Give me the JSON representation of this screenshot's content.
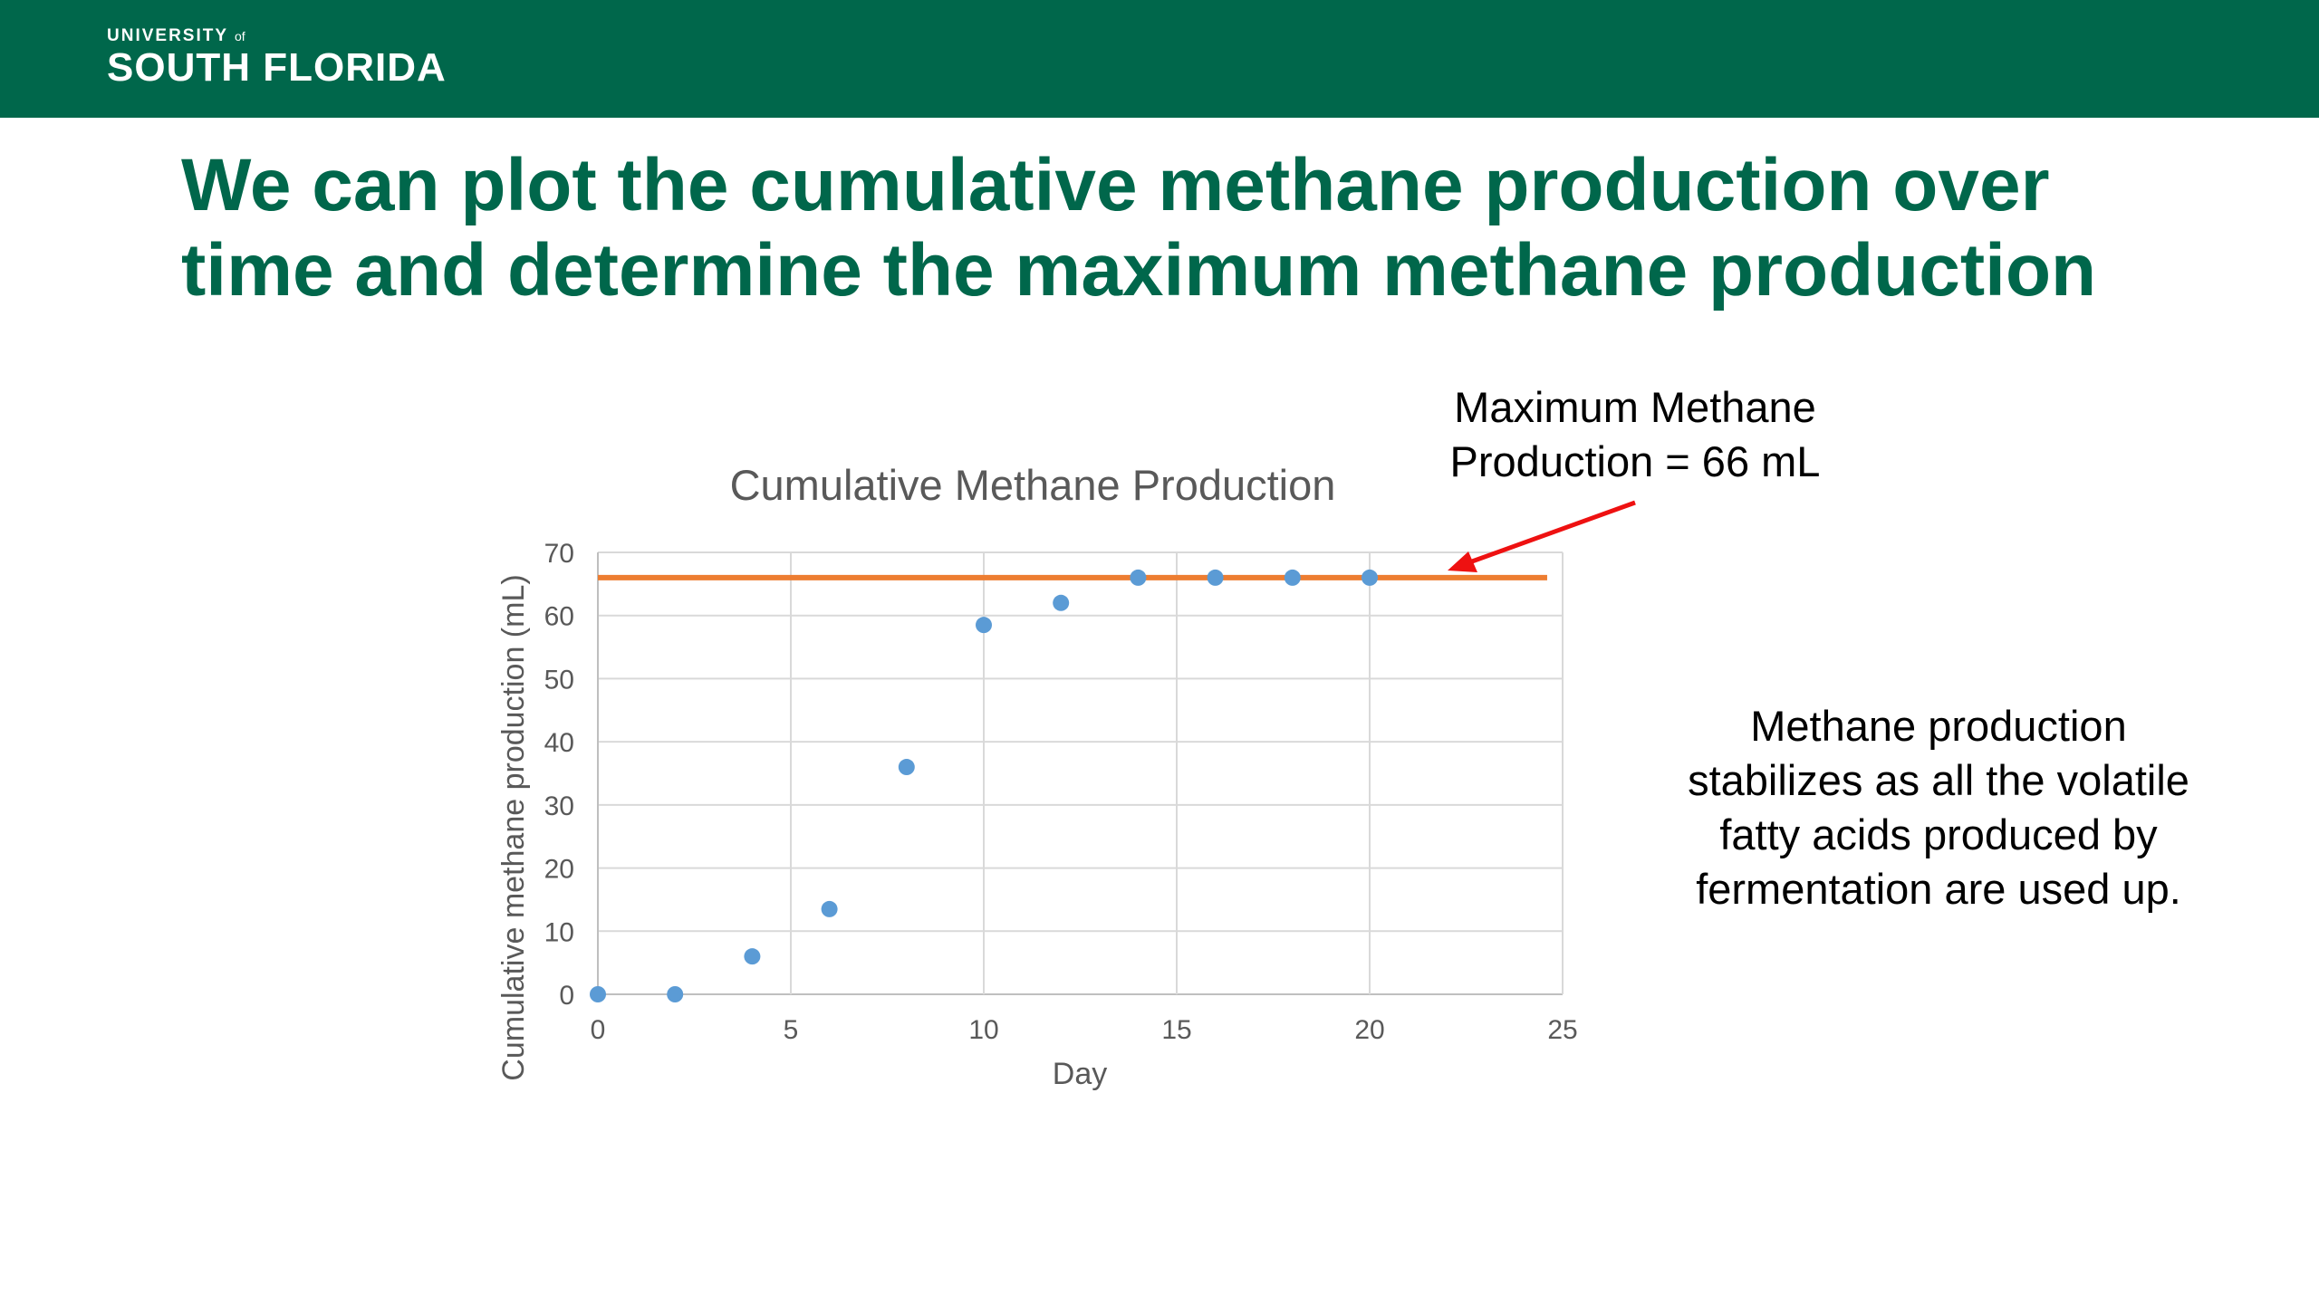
{
  "header": {
    "logo_top": "UNIVERSITY",
    "logo_of": "of",
    "logo_bottom": "SOUTH FLORIDA"
  },
  "slide": {
    "title_lines": [
      "We can plot the cumulative methane production over",
      "time and determine the maximum methane production"
    ]
  },
  "annotations": {
    "max_lines": [
      "Maximum Methane",
      "Production = 66 mL"
    ],
    "stable_lines": [
      "Methane production",
      "stabilizes as all the volatile",
      "fatty acids produced by",
      "fermentation are used up."
    ]
  },
  "colors": {
    "header": "#00674b",
    "title": "#00674b",
    "points": "#5b9bd5",
    "max_line": "#ed7d31",
    "arrow": "#ee1111"
  },
  "chart_data": {
    "type": "scatter",
    "title": "Cumulative Methane Production",
    "xlabel": "Day",
    "ylabel": "Cumulative methane production (mL)",
    "xlim": [
      0,
      25
    ],
    "ylim": [
      0,
      70
    ],
    "xticks": [
      0,
      5,
      10,
      15,
      20,
      25
    ],
    "yticks": [
      0,
      10,
      20,
      30,
      40,
      50,
      60,
      70
    ],
    "grid": true,
    "series": [
      {
        "x": [
          0,
          2,
          4,
          6,
          8,
          10,
          12,
          14,
          16,
          18,
          20
        ],
        "y": [
          0,
          0,
          6,
          13.5,
          36,
          58.5,
          62,
          66,
          66,
          66,
          66
        ]
      }
    ],
    "reference_line": {
      "y": 66,
      "x_range": [
        0,
        24.6
      ]
    }
  }
}
